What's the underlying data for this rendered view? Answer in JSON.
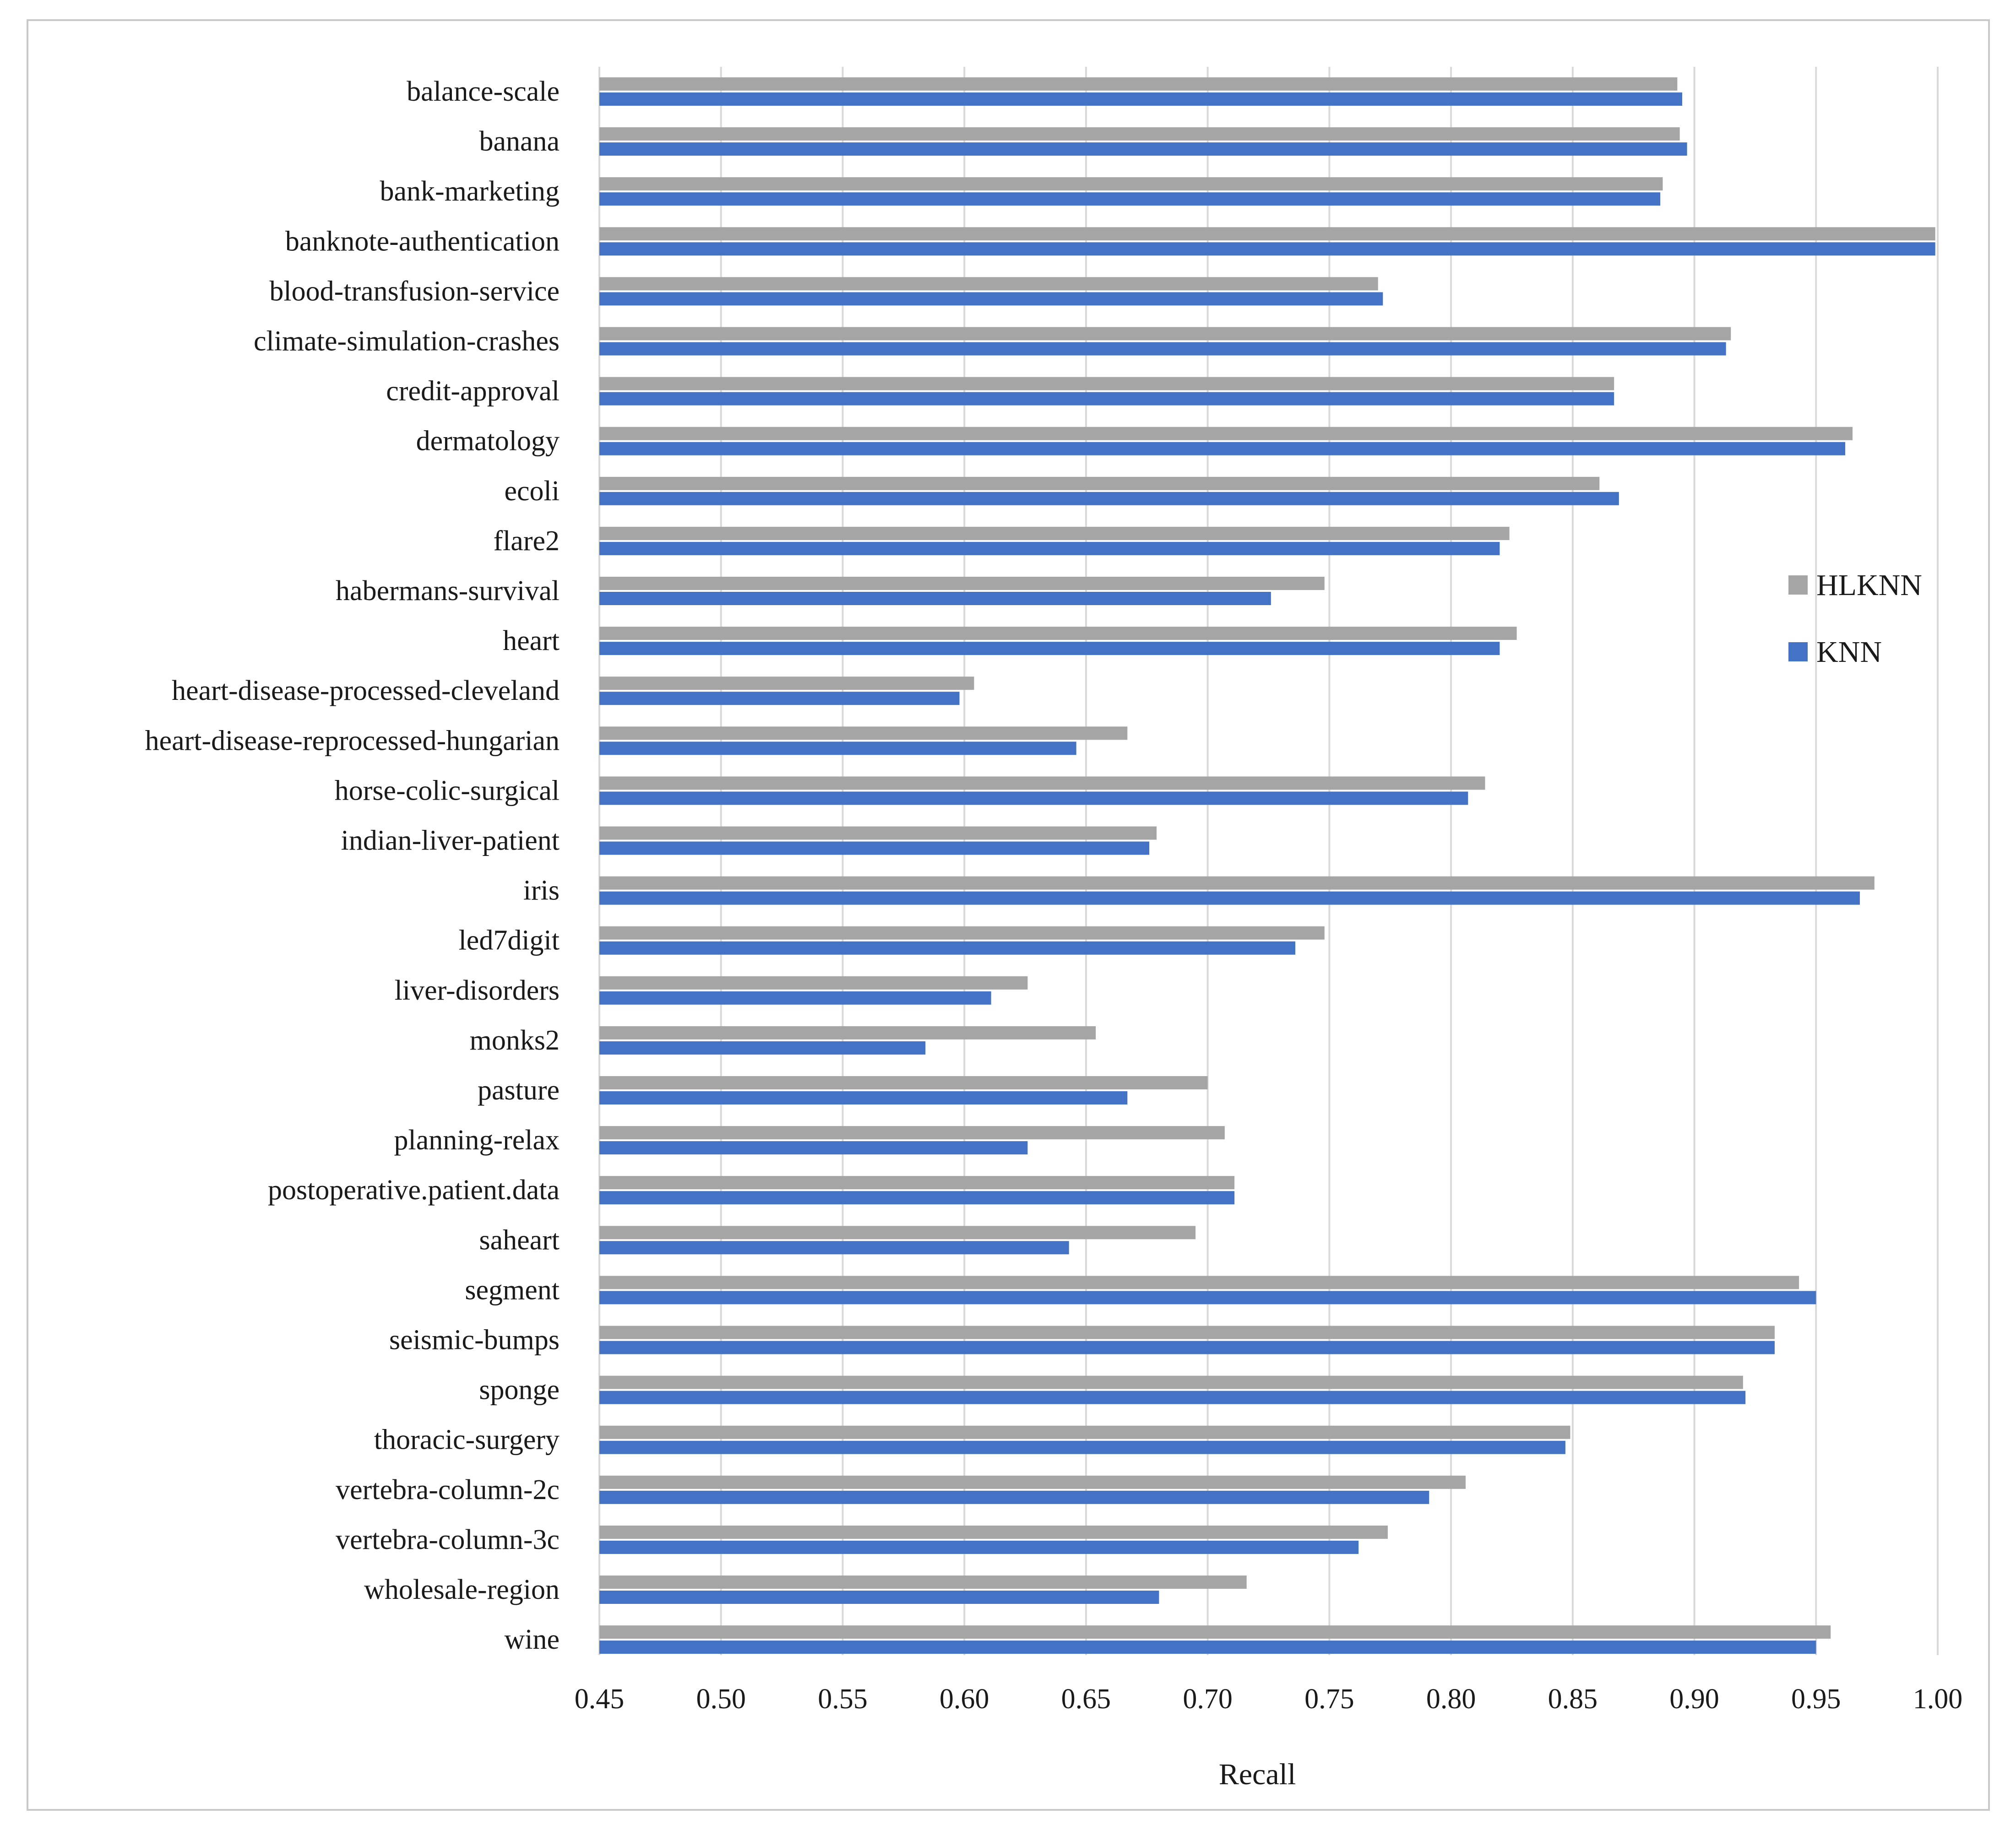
{
  "chart_data": {
    "type": "bar",
    "orientation": "horizontal",
    "title": "",
    "xlabel": "Recall",
    "ylabel": "",
    "xlim": [
      0.45,
      1.0
    ],
    "x_ticks": [
      "0.45",
      "0.50",
      "0.55",
      "0.60",
      "0.65",
      "0.70",
      "0.75",
      "0.80",
      "0.85",
      "0.90",
      "0.95",
      "1.00"
    ],
    "grid": true,
    "legend_position": "right",
    "categories": [
      "balance-scale",
      "banana",
      "bank-marketing",
      "banknote-authentication",
      "blood-transfusion-service",
      "climate-simulation-crashes",
      "credit-approval",
      "dermatology",
      "ecoli",
      "flare2",
      "habermans-survival",
      "heart",
      "heart-disease-processed-cleveland",
      "heart-disease-reprocessed-hungarian",
      "horse-colic-surgical",
      "indian-liver-patient",
      "iris",
      "led7digit",
      "liver-disorders",
      "monks2",
      "pasture",
      "planning-relax",
      "postoperative.patient.data",
      "saheart",
      "segment",
      "seismic-bumps",
      "sponge",
      "thoracic-surgery",
      "vertebra-column-2c",
      "vertebra-column-3c",
      "wholesale-region",
      "wine"
    ],
    "series": [
      {
        "name": "HLKNN",
        "color": "#a5a5a5",
        "values": [
          0.893,
          0.894,
          0.887,
          0.999,
          0.77,
          0.915,
          0.867,
          0.965,
          0.861,
          0.824,
          0.748,
          0.827,
          0.604,
          0.667,
          0.814,
          0.679,
          0.974,
          0.748,
          0.626,
          0.654,
          0.7,
          0.707,
          0.711,
          0.695,
          0.943,
          0.933,
          0.92,
          0.849,
          0.806,
          0.774,
          0.716,
          0.956
        ]
      },
      {
        "name": "KNN",
        "color": "#4472c4",
        "values": [
          0.895,
          0.897,
          0.886,
          0.999,
          0.772,
          0.913,
          0.867,
          0.962,
          0.869,
          0.82,
          0.726,
          0.82,
          0.598,
          0.646,
          0.807,
          0.676,
          0.968,
          0.736,
          0.611,
          0.584,
          0.667,
          0.626,
          0.711,
          0.643,
          0.95,
          0.933,
          0.921,
          0.847,
          0.791,
          0.762,
          0.68,
          0.95
        ]
      }
    ]
  }
}
